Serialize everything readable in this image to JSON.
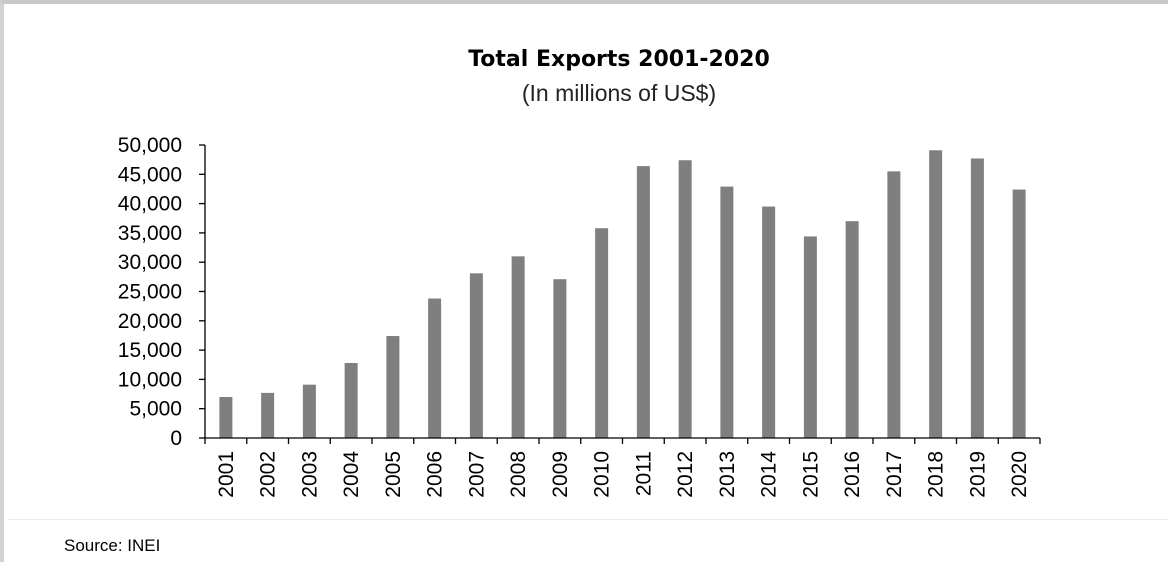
{
  "chart_data": {
    "type": "bar",
    "title": "Total Exports 2001-2020",
    "subtitle": "(In millions of US$)",
    "xlabel": "",
    "ylabel": "",
    "categories": [
      "2001",
      "2002",
      "2003",
      "2004",
      "2005",
      "2006",
      "2007",
      "2008",
      "2009",
      "2010",
      "2011",
      "2012",
      "2013",
      "2014",
      "2015",
      "2016",
      "2017",
      "2018",
      "2019",
      "2020"
    ],
    "values": [
      7000,
      7700,
      9100,
      12800,
      17400,
      23800,
      28100,
      31000,
      27100,
      35800,
      46400,
      47400,
      42900,
      39500,
      34400,
      37000,
      45500,
      49100,
      47700,
      42400
    ],
    "ylim": [
      0,
      50000
    ],
    "yticks": [
      "0",
      "5,000",
      "10,000",
      "15,000",
      "20,000",
      "25,000",
      "30,000",
      "35,000",
      "40,000",
      "45,000",
      "50,000"
    ],
    "grid": false,
    "legend": "none",
    "bar_color": "#7f7f7f",
    "axis_color": "#000000"
  },
  "footer": {
    "source": "Source: INEI"
  }
}
